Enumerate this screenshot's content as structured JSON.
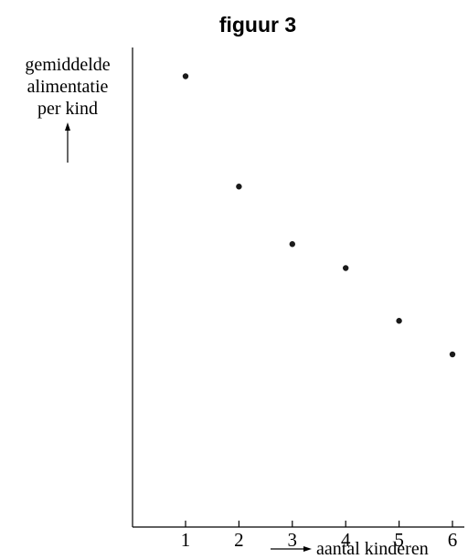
{
  "chart_data": {
    "type": "scatter",
    "title": "figuur 3",
    "ylabel_lines": [
      "gemiddelde",
      "alimentatie",
      "per kind"
    ],
    "xlabel": "aantal kinderen",
    "xlim": [
      0,
      6.2
    ],
    "ylim": [
      0,
      10
    ],
    "x": [
      1,
      2,
      3,
      4,
      5,
      6
    ],
    "y": [
      9.4,
      7.1,
      5.9,
      5.4,
      4.3,
      3.6
    ],
    "xticks": [
      "1",
      "2",
      "3",
      "4",
      "5",
      "6"
    ],
    "grid": false,
    "legend": "none",
    "point_color": "#1a1a1a"
  }
}
